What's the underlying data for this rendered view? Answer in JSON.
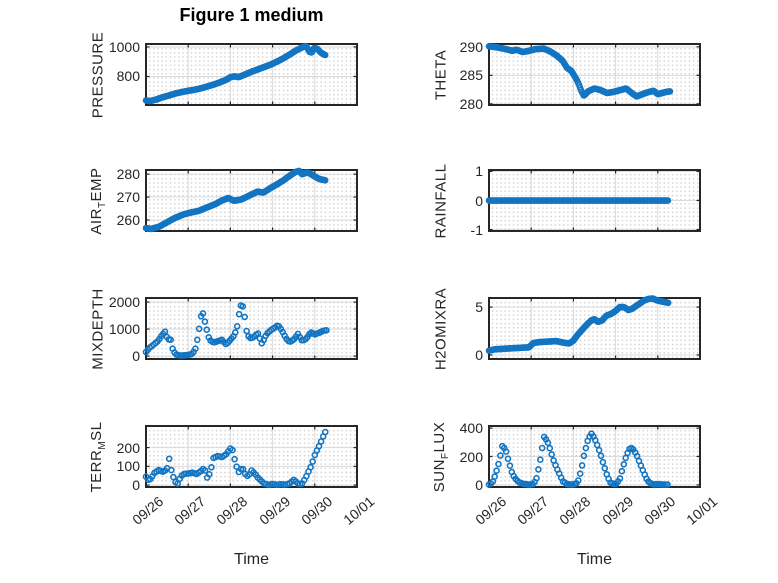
{
  "title": "Figure 1 medium",
  "xlabel": "Time",
  "style": {
    "marker_color": "#1375c2",
    "axes_color": "#262626",
    "grid_color": "#dadada",
    "minor_dot_color": "#d2d2d2",
    "background": "#ffffff",
    "title_color": "#000000"
  },
  "x_axis": {
    "xlim_days": [
      0,
      5
    ],
    "tick_positions": [
      0,
      1,
      2,
      3,
      4,
      5
    ],
    "tick_labels": [
      "09/26",
      "09/27",
      "09/28",
      "09/29",
      "09/30",
      "10/01"
    ],
    "tick_rotation_deg": 40
  },
  "chart_data": [
    {
      "id": "pressure",
      "type": "scatter",
      "marker": "open-circle",
      "row": 0,
      "col": 0,
      "ylabel_parts": [
        {
          "t": "PRESSURE",
          "sub": false
        }
      ],
      "yticks": [
        800,
        1000
      ],
      "ylim": [
        607,
        1020
      ],
      "sample_interval_days": 0.022,
      "points_x": [
        0,
        0.1,
        0.25,
        0.4,
        0.55,
        0.7,
        0.85,
        1.0,
        1.15,
        1.3,
        1.45,
        1.6,
        1.75,
        1.9,
        2.0,
        2.1,
        2.2,
        2.35,
        2.5,
        2.65,
        2.8,
        2.95,
        3.1,
        3.25,
        3.4,
        3.55,
        3.65,
        3.72,
        3.8,
        3.87,
        3.93,
        3.99,
        4.07,
        4.15,
        4.25
      ],
      "points_y": [
        638,
        634,
        645,
        660,
        672,
        685,
        695,
        703,
        710,
        720,
        732,
        745,
        760,
        778,
        795,
        801,
        796,
        814,
        832,
        848,
        864,
        880,
        900,
        922,
        948,
        975,
        990,
        1000,
        1006,
        968,
        962,
        996,
        984,
        960,
        945
      ]
    },
    {
      "id": "theta",
      "type": "scatter",
      "marker": "open-circle",
      "row": 0,
      "col": 1,
      "ylabel_parts": [
        {
          "t": "THETA",
          "sub": false
        }
      ],
      "yticks": [
        280,
        285,
        290
      ],
      "ylim": [
        279.8,
        290.5
      ],
      "sample_interval_days": 0.022,
      "points_x": [
        0,
        0.2,
        0.4,
        0.55,
        0.65,
        0.8,
        0.95,
        1.1,
        1.3,
        1.45,
        1.6,
        1.75,
        1.85,
        1.95,
        2.05,
        2.12,
        2.18,
        2.25,
        2.35,
        2.5,
        2.65,
        2.8,
        2.95,
        3.1,
        3.25,
        3.4,
        3.5,
        3.6,
        3.75,
        3.9,
        4.0,
        4.1,
        4.2,
        4.3
      ],
      "points_y": [
        290.1,
        289.9,
        289.6,
        289.3,
        289.5,
        289.1,
        289.3,
        289.6,
        289.7,
        289.2,
        288.5,
        287.5,
        286.3,
        285.8,
        284.6,
        283.6,
        282.4,
        281.4,
        282.2,
        282.7,
        282.4,
        281.9,
        282.1,
        282.4,
        282.7,
        281.8,
        281.3,
        281.6,
        282.0,
        282.3,
        281.7,
        281.9,
        282.1,
        282.2
      ]
    },
    {
      "id": "air-temp",
      "type": "scatter",
      "marker": "open-circle",
      "row": 1,
      "col": 0,
      "ylabel_parts": [
        {
          "t": "AIR",
          "sub": false
        },
        {
          "t": "T",
          "sub": true
        },
        {
          "t": "EMP",
          "sub": false
        }
      ],
      "yticks": [
        260,
        270,
        280
      ],
      "ylim": [
        255.2,
        281.8
      ],
      "sample_interval_days": 0.022,
      "points_x": [
        0,
        0.12,
        0.3,
        0.5,
        0.7,
        0.9,
        1.05,
        1.25,
        1.45,
        1.65,
        1.8,
        1.95,
        2.08,
        2.25,
        2.4,
        2.55,
        2.65,
        2.78,
        2.92,
        3.08,
        3.25,
        3.42,
        3.55,
        3.63,
        3.7,
        3.8,
        3.88,
        3.98,
        4.1,
        4.25
      ],
      "points_y": [
        256.5,
        256.1,
        257,
        259,
        261,
        262.5,
        263.2,
        264,
        265.5,
        267,
        268.5,
        269.6,
        268.4,
        268.9,
        270.2,
        271.6,
        272.4,
        271.9,
        273.6,
        275.3,
        277.2,
        279.5,
        281,
        281.4,
        279.9,
        280.7,
        280.3,
        279.2,
        277.9,
        277.3
      ]
    },
    {
      "id": "rainfall",
      "type": "scatter",
      "marker": "open-circle",
      "row": 1,
      "col": 1,
      "ylabel_parts": [
        {
          "t": "RAINFALL",
          "sub": false
        }
      ],
      "yticks": [
        -1,
        0,
        1
      ],
      "ylim": [
        -1.05,
        1.05
      ],
      "sample_interval_days": 0.02,
      "points_x": [
        0,
        4.25
      ],
      "points_y": [
        0,
        0
      ]
    },
    {
      "id": "mixdepth",
      "type": "scatter",
      "marker": "open-circle",
      "row": 2,
      "col": 0,
      "ylabel_parts": [
        {
          "t": "MIXDEPTH",
          "sub": false
        }
      ],
      "yticks": [
        0,
        1000,
        2000
      ],
      "ylim": [
        -110,
        2150
      ],
      "sample_interval_days": 0.045,
      "points_x": [
        0,
        0.08,
        0.18,
        0.28,
        0.38,
        0.45,
        0.52,
        0.58,
        0.62,
        0.7,
        0.8,
        0.95,
        1.1,
        1.18,
        1.25,
        1.3,
        1.34,
        1.42,
        1.5,
        1.6,
        1.7,
        1.8,
        1.9,
        2.0,
        2.08,
        2.15,
        2.22,
        2.27,
        2.32,
        2.38,
        2.45,
        2.55,
        2.65,
        2.75,
        2.85,
        2.95,
        3.05,
        3.13,
        3.22,
        3.32,
        3.4,
        3.5,
        3.6,
        3.7,
        3.8,
        3.9,
        4.0,
        4.1,
        4.2,
        4.3
      ],
      "points_y": [
        150,
        300,
        420,
        550,
        780,
        900,
        600,
        650,
        300,
        60,
        20,
        30,
        80,
        300,
        900,
        1450,
        1650,
        1100,
        600,
        500,
        550,
        600,
        430,
        600,
        750,
        1000,
        1700,
        1980,
        1700,
        950,
        650,
        700,
        850,
        450,
        800,
        950,
        1050,
        1150,
        950,
        650,
        520,
        600,
        820,
        560,
        640,
        880,
        800,
        860,
        940,
        960
      ]
    },
    {
      "id": "h2omixra",
      "type": "scatter",
      "marker": "open-circle",
      "row": 2,
      "col": 1,
      "ylabel_parts": [
        {
          "t": "H2OMIXRA",
          "sub": false
        }
      ],
      "yticks": [
        0,
        5
      ],
      "ylim": [
        -0.42,
        5.95
      ],
      "sample_interval_days": 0.022,
      "points_x": [
        0,
        0.15,
        0.35,
        0.55,
        0.75,
        0.95,
        1.05,
        1.2,
        1.4,
        1.6,
        1.75,
        1.9,
        2.0,
        2.1,
        2.2,
        2.3,
        2.42,
        2.5,
        2.58,
        2.68,
        2.78,
        2.9,
        3.0,
        3.1,
        3.2,
        3.3,
        3.38,
        3.48,
        3.58,
        3.68,
        3.78,
        3.88,
        3.98,
        4.08,
        4.25
      ],
      "points_y": [
        0.45,
        0.6,
        0.65,
        0.7,
        0.75,
        0.8,
        1.25,
        1.35,
        1.4,
        1.45,
        1.3,
        1.2,
        1.5,
        2.1,
        2.6,
        3.1,
        3.6,
        3.75,
        3.45,
        3.6,
        4.1,
        4.3,
        4.6,
        5.0,
        5.0,
        4.7,
        4.8,
        5.1,
        5.4,
        5.7,
        5.85,
        5.9,
        5.7,
        5.6,
        5.45
      ]
    },
    {
      "id": "terr-msl",
      "type": "scatter",
      "marker": "open-circle",
      "row": 3,
      "col": 0,
      "ylabel_parts": [
        {
          "t": "TERR",
          "sub": false
        },
        {
          "t": "M",
          "sub": true
        },
        {
          "t": "SL",
          "sub": false
        }
      ],
      "yticks": [
        0,
        100,
        200
      ],
      "ylim": [
        -10,
        315
      ],
      "sample_interval_days": 0.05,
      "points_x": [
        0,
        0.06,
        0.12,
        0.2,
        0.3,
        0.42,
        0.5,
        0.55,
        0.6,
        0.68,
        0.75,
        0.82,
        0.9,
        1.0,
        1.1,
        1.2,
        1.3,
        1.38,
        1.45,
        1.52,
        1.6,
        1.7,
        1.8,
        1.9,
        2.0,
        2.06,
        2.12,
        2.2,
        2.28,
        2.35,
        2.42,
        2.5,
        2.58,
        2.65,
        2.72,
        2.8,
        2.9,
        3.0,
        3.1,
        3.2,
        3.3,
        3.4,
        3.5,
        3.56,
        3.62,
        3.7,
        3.78,
        3.85,
        3.92,
        4.0,
        4.06,
        4.12,
        4.18,
        4.25
      ],
      "points_y": [
        45,
        25,
        35,
        65,
        80,
        70,
        90,
        140,
        80,
        20,
        8,
        45,
        60,
        62,
        66,
        60,
        75,
        92,
        40,
        65,
        145,
        155,
        150,
        165,
        195,
        185,
        115,
        70,
        95,
        60,
        45,
        78,
        62,
        40,
        25,
        8,
        2,
        6,
        2,
        5,
        3,
        8,
        28,
        18,
        5,
        8,
        38,
        72,
        105,
        160,
        190,
        215,
        250,
        283
      ]
    },
    {
      "id": "sun-flux",
      "type": "scatter",
      "marker": "open-circle",
      "row": 3,
      "col": 1,
      "ylabel_parts": [
        {
          "t": "SUN",
          "sub": false
        },
        {
          "t": "F",
          "sub": true
        },
        {
          "t": "LUX",
          "sub": false
        }
      ],
      "yticks": [
        0,
        200,
        400
      ],
      "ylim": [
        -15,
        415
      ],
      "sample_interval_days": 0.045,
      "points_x": [
        0,
        0.08,
        0.15,
        0.22,
        0.28,
        0.32,
        0.4,
        0.48,
        0.55,
        0.62,
        0.7,
        0.8,
        0.95,
        1.05,
        1.12,
        1.2,
        1.26,
        1.3,
        1.38,
        1.45,
        1.52,
        1.6,
        1.68,
        1.75,
        1.85,
        2.0,
        2.1,
        2.18,
        2.26,
        2.34,
        2.42,
        2.5,
        2.58,
        2.65,
        2.72,
        2.8,
        2.88,
        3.0,
        3.1,
        3.18,
        3.26,
        3.35,
        3.42,
        3.5,
        3.58,
        3.65,
        3.72,
        3.8,
        3.9,
        4.0,
        4.1,
        4.25
      ],
      "points_y": [
        2,
        15,
        70,
        140,
        220,
        280,
        240,
        150,
        80,
        45,
        20,
        8,
        2,
        5,
        40,
        150,
        260,
        340,
        310,
        250,
        180,
        120,
        70,
        25,
        5,
        2,
        15,
        100,
        220,
        310,
        365,
        330,
        270,
        210,
        140,
        65,
        15,
        2,
        40,
        130,
        210,
        265,
        250,
        210,
        150,
        100,
        50,
        15,
        3,
        5,
        3,
        2
      ]
    }
  ]
}
